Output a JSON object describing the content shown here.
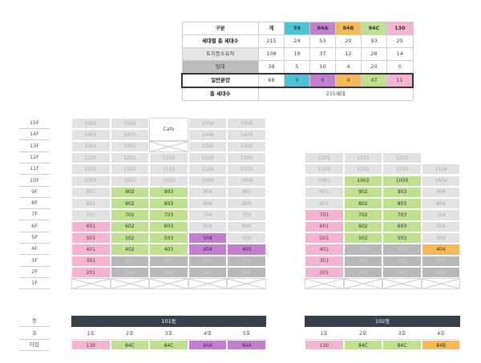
{
  "summary": {
    "header": [
      "구분",
      "계",
      "59",
      "84A",
      "84B",
      "84C",
      "130"
    ],
    "header_colors": [
      "",
      "",
      "#4fc3d6",
      "#c37ed0",
      "#f5ba56",
      "#bfe08f",
      "#f4b3d0"
    ],
    "rows": [
      {
        "label": "세대별 총 세대수",
        "values": [
          "215",
          "24",
          "53",
          "20",
          "93",
          "25"
        ]
      },
      {
        "label": "토지등소유자",
        "values": [
          "108",
          "19",
          "37",
          "12",
          "26",
          "14"
        ]
      },
      {
        "label": "임대",
        "values": [
          "39",
          "5",
          "10",
          "4",
          "20",
          "0"
        ]
      },
      {
        "label": "일반분양",
        "values": [
          "68",
          "0",
          "6",
          "4",
          "47",
          "11"
        ]
      }
    ],
    "total_label": "총 세대수",
    "total_value": "215세대"
  },
  "floors": [
    "15F",
    "14F",
    "13F",
    "12F",
    "11F",
    "10F",
    "9F",
    "8F",
    "7F",
    "6F",
    "5F",
    "4F",
    "3F",
    "2F",
    "1F"
  ],
  "building101": {
    "name": "101동",
    "cafe_label": "Cafe",
    "units": [
      [
        "1501",
        "1502",
        "CAFE",
        "1504",
        "1505"
      ],
      [
        "1401",
        "1402",
        "CAFE",
        "1404",
        "1405"
      ],
      [
        "1301",
        "1302",
        "X",
        "1304",
        "1305"
      ],
      [
        "1201",
        "1202",
        "1203",
        "1204",
        "1205"
      ],
      [
        "1101",
        "1102",
        "1103",
        "1104",
        "1105"
      ],
      [
        "1001",
        "1002",
        "1003",
        "1004",
        "1005"
      ],
      [
        "901",
        "902",
        "903",
        "904",
        "905"
      ],
      [
        "801",
        "802",
        "803",
        "804",
        "805"
      ],
      [
        "701",
        "702",
        "703",
        "704",
        "705"
      ],
      [
        "601",
        "602",
        "603",
        "604",
        "605"
      ],
      [
        "501",
        "502",
        "503",
        "504",
        "505"
      ],
      [
        "401",
        "402",
        "403",
        "404",
        "405"
      ],
      [
        "301",
        "302",
        "303",
        "304",
        "305"
      ],
      [
        "201",
        "202",
        "203",
        "204",
        "205"
      ],
      [
        "X",
        "X",
        "X",
        "X",
        "X"
      ]
    ],
    "styles": [
      [
        "g",
        "g",
        "cafe",
        "g",
        "g"
      ],
      [
        "g",
        "g",
        "cafe",
        "g",
        "g"
      ],
      [
        "g",
        "g",
        "x",
        "g",
        "g"
      ],
      [
        "g",
        "g",
        "g",
        "g",
        "g"
      ],
      [
        "g",
        "g",
        "g",
        "g",
        "g"
      ],
      [
        "g",
        "g",
        "g",
        "g",
        "g"
      ],
      [
        "g",
        "gr",
        "gr",
        "g",
        "g"
      ],
      [
        "g",
        "gr",
        "gr",
        "g",
        "g"
      ],
      [
        "g",
        "gr",
        "gr",
        "g",
        "g"
      ],
      [
        "p",
        "gr",
        "gr",
        "g",
        "g"
      ],
      [
        "p",
        "gr",
        "gr",
        "pu",
        "g"
      ],
      [
        "p",
        "gr",
        "gr",
        "pu",
        "pu"
      ],
      [
        "p",
        "d",
        "d",
        "d",
        "d"
      ],
      [
        "p",
        "d",
        "d",
        "d",
        "d"
      ],
      [
        "x",
        "x",
        "x",
        "x",
        "x"
      ]
    ],
    "line_labels": [
      "1호",
      "2호",
      "3호",
      "4호",
      "5호"
    ],
    "types": [
      "130",
      "84C",
      "84C",
      "84A",
      "84A"
    ],
    "type_styles": [
      "p",
      "gr",
      "gr",
      "pu",
      "pu"
    ]
  },
  "building102": {
    "name": "102동",
    "units": [
      [
        "1201",
        "1202",
        "1203",
        ""
      ],
      [
        "1101",
        "1102",
        "1103",
        "1104"
      ],
      [
        "1001",
        "1002",
        "1003",
        "1004"
      ],
      [
        "901",
        "902",
        "903",
        "904"
      ],
      [
        "801",
        "802",
        "803",
        "804"
      ],
      [
        "701",
        "702",
        "703",
        "704"
      ],
      [
        "601",
        "602",
        "603",
        "604"
      ],
      [
        "501",
        "502",
        "503",
        "504"
      ],
      [
        "401",
        "402",
        "403",
        "404"
      ],
      [
        "301",
        "302",
        "303",
        "304"
      ],
      [
        "201",
        "202",
        "203",
        "204"
      ],
      [
        "X",
        "X",
        "X",
        "X"
      ]
    ],
    "styles": [
      [
        "g",
        "g",
        "g",
        ""
      ],
      [
        "g",
        "g",
        "g",
        "g"
      ],
      [
        "g",
        "gr",
        "gr",
        "g"
      ],
      [
        "g",
        "gr",
        "gr",
        "g"
      ],
      [
        "g",
        "gr",
        "gr",
        "g"
      ],
      [
        "p",
        "gr",
        "gr",
        "g"
      ],
      [
        "p",
        "gr",
        "gr",
        "g"
      ],
      [
        "p",
        "gr",
        "gr",
        "g"
      ],
      [
        "p",
        "d",
        "d",
        "o"
      ],
      [
        "p",
        "d",
        "d",
        "d"
      ],
      [
        "p",
        "d",
        "d",
        "d"
      ],
      [
        "x",
        "x",
        "x",
        "x"
      ]
    ],
    "line_labels": [
      "1호",
      "2호",
      "3호",
      "4호"
    ],
    "types": [
      "130",
      "84C",
      "84C",
      "84B"
    ],
    "type_styles": [
      "p",
      "gr",
      "gr",
      "o"
    ]
  },
  "bottom_labels": [
    "동",
    "호",
    "타입"
  ]
}
